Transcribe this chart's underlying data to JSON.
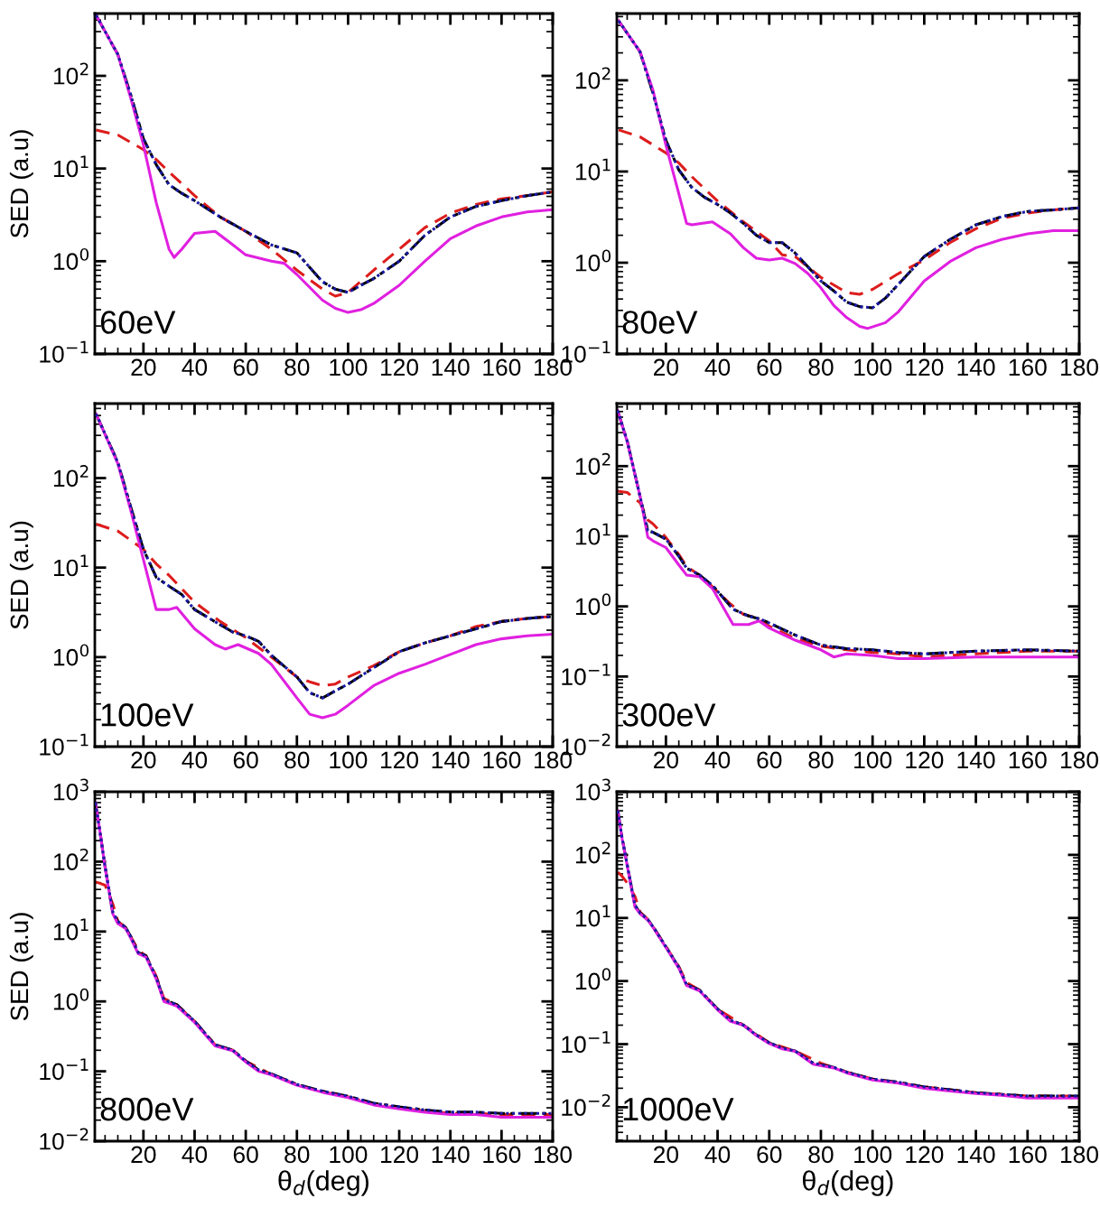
{
  "chart_data": [
    {
      "type": "line",
      "ylabel": "SED (a.u)",
      "annotations": [
        "60eV"
      ],
      "log": "y",
      "xlim": [
        1,
        180
      ],
      "ylim": [
        0.1,
        470
      ],
      "xticks": [
        20,
        40,
        60,
        80,
        100,
        120,
        140,
        160,
        180
      ],
      "yticks": [
        {
          "value": 0.1,
          "label": "10$^{−1}$"
        },
        {
          "value": 1,
          "label": "10$^{0}$"
        },
        {
          "value": 10,
          "label": "10$^{1}$"
        },
        {
          "value": 100,
          "label": "10$^{2}$"
        }
      ],
      "series": [
        {
          "color": "#dd1c1c",
          "line_style": "dashed",
          "x": [
            1.5,
            10,
            20,
            25,
            30,
            40,
            50,
            60,
            70,
            80,
            90,
            95,
            100,
            110,
            120,
            130,
            140,
            150,
            160,
            170,
            180
          ],
          "values": [
            26,
            23,
            16,
            12.5,
            9.2,
            5.1,
            3.0,
            2.1,
            1.35,
            0.8,
            0.5,
            0.42,
            0.46,
            0.8,
            1.35,
            2.3,
            3.3,
            4.1,
            4.7,
            5.1,
            5.6
          ]
        },
        {
          "color": "#1a1aa8",
          "line_style": "dotted",
          "x": [
            1.5,
            10,
            15,
            20,
            25,
            30,
            35,
            40,
            50,
            60,
            70,
            80,
            90,
            95,
            100,
            105,
            110,
            120,
            130,
            140,
            150,
            160,
            170,
            180
          ],
          "values": [
            450,
            170,
            63,
            21,
            11,
            6.7,
            5.4,
            4.5,
            3.0,
            2.1,
            1.5,
            1.23,
            0.6,
            0.5,
            0.46,
            0.55,
            0.65,
            1.0,
            1.9,
            3.0,
            3.9,
            4.5,
            5.1,
            5.6
          ]
        },
        {
          "color": "#000000",
          "line_style": "dashdot",
          "x": [
            1.5,
            10,
            15,
            20,
            25,
            30,
            35,
            40,
            50,
            60,
            70,
            80,
            90,
            95,
            100,
            105,
            110,
            120,
            130,
            140,
            150,
            160,
            170,
            180
          ],
          "values": [
            450,
            170,
            63,
            21,
            11,
            6.7,
            5.4,
            4.5,
            3.0,
            2.1,
            1.5,
            1.23,
            0.6,
            0.5,
            0.46,
            0.55,
            0.65,
            1.0,
            1.9,
            3.0,
            3.9,
            4.5,
            5.1,
            5.6
          ]
        },
        {
          "color": "#e020e0",
          "line_style": "solid",
          "x": [
            1.5,
            10,
            15,
            20,
            25,
            30,
            32,
            35,
            40,
            48,
            55,
            60,
            70,
            75,
            80,
            90,
            95,
            100,
            105,
            110,
            120,
            130,
            140,
            150,
            160,
            170,
            180
          ],
          "values": [
            450,
            170,
            58,
            18,
            4.3,
            1.35,
            1.1,
            1.35,
            2.0,
            2.1,
            1.5,
            1.17,
            1.0,
            0.95,
            0.72,
            0.38,
            0.31,
            0.28,
            0.3,
            0.35,
            0.55,
            1.0,
            1.75,
            2.4,
            3.0,
            3.4,
            3.6
          ]
        }
      ]
    },
    {
      "type": "line",
      "annotations": [
        "80eV"
      ],
      "log": "y",
      "xlim": [
        1,
        180
      ],
      "ylim": [
        0.1,
        540
      ],
      "xticks": [
        20,
        40,
        60,
        80,
        100,
        120,
        140,
        160,
        180
      ],
      "yticks": [
        {
          "value": 0.1,
          "label": "10$^{−1}$"
        },
        {
          "value": 1,
          "label": "10$^{0}$"
        },
        {
          "value": 10,
          "label": "10$^{1}$"
        },
        {
          "value": 100,
          "label": "10$^{2}$"
        }
      ],
      "series": [
        {
          "color": "#dd1c1c",
          "line_style": "dashed",
          "x": [
            1.7,
            10,
            20,
            25,
            30,
            40,
            50,
            60,
            65,
            70,
            80,
            90,
            95,
            100,
            110,
            120,
            130,
            140,
            150,
            160,
            170,
            180
          ],
          "values": [
            28.6,
            24,
            16,
            12.4,
            8.8,
            4.75,
            2.8,
            1.74,
            1.22,
            1.17,
            0.69,
            0.47,
            0.45,
            0.51,
            0.76,
            1.07,
            1.66,
            2.36,
            3.06,
            3.5,
            3.8,
            4.0
          ]
        },
        {
          "color": "#1a1aa8",
          "line_style": "dotted",
          "x": [
            1.7,
            10,
            15,
            20,
            25,
            30,
            35,
            40,
            45,
            50,
            55,
            60,
            65,
            70,
            75,
            80,
            85,
            90,
            95,
            100,
            105,
            110,
            120,
            130,
            140,
            150,
            160,
            170,
            180
          ],
          "values": [
            450,
            205,
            72,
            22,
            10.4,
            6.7,
            5.2,
            4.35,
            3.5,
            2.7,
            2.0,
            1.66,
            1.66,
            1.28,
            0.9,
            0.63,
            0.49,
            0.37,
            0.33,
            0.32,
            0.41,
            0.58,
            1.17,
            1.8,
            2.6,
            3.2,
            3.65,
            3.8,
            4.0
          ]
        },
        {
          "color": "#000000",
          "line_style": "dashdot",
          "x": [
            1.7,
            10,
            15,
            20,
            25,
            30,
            35,
            40,
            45,
            50,
            55,
            60,
            65,
            70,
            75,
            80,
            85,
            90,
            95,
            100,
            105,
            110,
            120,
            130,
            140,
            150,
            160,
            170,
            180
          ],
          "values": [
            450,
            205,
            72,
            22,
            10.4,
            6.7,
            5.2,
            4.35,
            3.5,
            2.7,
            2.0,
            1.66,
            1.66,
            1.28,
            0.9,
            0.63,
            0.49,
            0.37,
            0.33,
            0.32,
            0.41,
            0.58,
            1.17,
            1.8,
            2.6,
            3.2,
            3.65,
            3.8,
            4.0
          ]
        },
        {
          "color": "#e020e0",
          "line_style": "solid",
          "x": [
            1.7,
            10,
            15,
            20,
            25,
            28,
            30,
            38,
            45,
            50,
            55,
            60,
            65,
            70,
            75,
            80,
            85,
            90,
            95,
            98,
            105,
            110,
            120,
            130,
            140,
            150,
            160,
            170,
            180
          ],
          "values": [
            450,
            205,
            78,
            19.4,
            5.7,
            2.7,
            2.6,
            2.8,
            2.07,
            1.46,
            1.12,
            1.07,
            1.12,
            0.98,
            0.76,
            0.53,
            0.34,
            0.25,
            0.2,
            0.19,
            0.22,
            0.29,
            0.63,
            1.03,
            1.46,
            1.8,
            2.07,
            2.25,
            2.25
          ]
        }
      ]
    },
    {
      "type": "line",
      "ylabel": "SED (a.u)",
      "annotations": [
        "100eV"
      ],
      "log": "y",
      "xlim": [
        1,
        180
      ],
      "ylim": [
        0.1,
        680
      ],
      "xticks": [
        20,
        40,
        60,
        80,
        100,
        120,
        140,
        160,
        180
      ],
      "yticks": [
        {
          "value": 0.1,
          "label": "10$^{−1}$"
        },
        {
          "value": 1,
          "label": "10$^{0}$"
        },
        {
          "value": 10,
          "label": "10$^{1}$"
        },
        {
          "value": 100,
          "label": "10$^{2}$"
        }
      ],
      "series": [
        {
          "color": "#dd1c1c",
          "line_style": "dashed",
          "x": [
            1.5,
            10,
            20,
            25,
            30,
            40,
            50,
            60,
            70,
            80,
            85,
            90,
            95,
            100,
            110,
            120,
            130,
            140,
            150,
            160,
            170,
            180
          ],
          "values": [
            30.6,
            25.6,
            16,
            11,
            8.2,
            4.1,
            2.5,
            1.65,
            1.0,
            0.6,
            0.53,
            0.48,
            0.5,
            0.6,
            0.8,
            1.15,
            1.44,
            1.73,
            2.2,
            2.5,
            2.7,
            2.85
          ]
        },
        {
          "color": "#1a1aa8",
          "line_style": "dotted",
          "x": [
            1.5,
            10,
            15,
            20,
            25,
            30,
            35,
            40,
            50,
            55,
            60,
            65,
            70,
            80,
            85,
            90,
            95,
            100,
            110,
            120,
            130,
            140,
            150,
            160,
            170,
            180
          ],
          "values": [
            520,
            150,
            48,
            16,
            7.8,
            6.2,
            5.0,
            3.4,
            2.3,
            1.9,
            1.73,
            1.5,
            1.05,
            0.6,
            0.4,
            0.35,
            0.42,
            0.5,
            0.76,
            1.15,
            1.44,
            1.73,
            2.07,
            2.5,
            2.7,
            2.85
          ]
        },
        {
          "color": "#000000",
          "line_style": "dashdot",
          "x": [
            1.5,
            10,
            15,
            20,
            25,
            30,
            35,
            40,
            50,
            55,
            60,
            65,
            70,
            80,
            85,
            90,
            95,
            100,
            110,
            120,
            130,
            140,
            150,
            160,
            170,
            180
          ],
          "values": [
            520,
            150,
            48,
            16,
            7.8,
            6.2,
            5.0,
            3.4,
            2.3,
            1.9,
            1.73,
            1.5,
            1.05,
            0.6,
            0.4,
            0.35,
            0.42,
            0.5,
            0.76,
            1.15,
            1.44,
            1.73,
            2.07,
            2.5,
            2.7,
            2.85
          ]
        },
        {
          "color": "#e020e0",
          "line_style": "solid",
          "x": [
            1.5,
            10,
            15,
            20,
            25,
            30,
            33,
            40,
            48,
            52,
            57,
            65,
            70,
            80,
            85,
            90,
            95,
            100,
            110,
            120,
            130,
            140,
            150,
            160,
            170,
            180
          ],
          "values": [
            520,
            145,
            44,
            12.3,
            3.4,
            3.4,
            3.6,
            2.07,
            1.38,
            1.23,
            1.38,
            1.1,
            0.83,
            0.35,
            0.23,
            0.21,
            0.23,
            0.29,
            0.48,
            0.66,
            0.83,
            1.07,
            1.38,
            1.6,
            1.73,
            1.8
          ]
        }
      ]
    },
    {
      "type": "line",
      "annotations": [
        "300eV"
      ],
      "log": "y",
      "xlim": [
        1,
        180
      ],
      "ylim": [
        0.01,
        780
      ],
      "xticks": [
        20,
        40,
        60,
        80,
        100,
        120,
        140,
        160,
        180
      ],
      "yticks": [
        {
          "value": 0.01,
          "label": "10$^{−2}$"
        },
        {
          "value": 0.1,
          "label": "10$^{−1}$"
        },
        {
          "value": 1,
          "label": "10$^{0}$"
        },
        {
          "value": 10,
          "label": "10$^{1}$"
        },
        {
          "value": 100,
          "label": "10$^{2}$"
        }
      ],
      "series": [
        {
          "color": "#dd1c1c",
          "line_style": "dashed",
          "x": [
            1.3,
            5,
            10,
            13,
            15,
            20,
            25,
            28,
            33,
            38,
            45,
            50,
            55,
            60,
            70,
            80,
            90,
            100,
            110,
            120,
            140,
            160,
            180
          ],
          "values": [
            44,
            42,
            30,
            17,
            15,
            9.6,
            5.5,
            3.7,
            2.8,
            1.9,
            1.08,
            0.77,
            0.69,
            0.52,
            0.35,
            0.27,
            0.24,
            0.22,
            0.21,
            0.19,
            0.21,
            0.23,
            0.23
          ]
        },
        {
          "color": "#1a1aa8",
          "line_style": "dotted",
          "x": [
            1.3,
            5,
            10,
            13,
            15,
            20,
            25,
            28,
            33,
            38,
            42,
            46,
            52,
            57,
            60,
            70,
            80,
            90,
            100,
            110,
            120,
            140,
            160,
            180
          ],
          "values": [
            620,
            230,
            37,
            12,
            11.4,
            9.1,
            5.2,
            3.5,
            2.8,
            2.0,
            1.35,
            0.91,
            0.73,
            0.65,
            0.58,
            0.39,
            0.28,
            0.25,
            0.24,
            0.22,
            0.21,
            0.23,
            0.24,
            0.23
          ]
        },
        {
          "color": "#000000",
          "line_style": "dashdot",
          "x": [
            1.3,
            5,
            10,
            13,
            15,
            20,
            25,
            28,
            33,
            38,
            42,
            46,
            52,
            57,
            60,
            70,
            80,
            90,
            100,
            110,
            120,
            140,
            160,
            180
          ],
          "values": [
            620,
            230,
            37,
            12,
            11.4,
            9.1,
            5.2,
            3.5,
            2.8,
            2.0,
            1.35,
            0.91,
            0.73,
            0.65,
            0.58,
            0.39,
            0.28,
            0.25,
            0.24,
            0.22,
            0.21,
            0.23,
            0.24,
            0.23
          ]
        },
        {
          "color": "#e020e0",
          "line_style": "solid",
          "x": [
            1.3,
            5,
            10,
            13,
            15,
            20,
            25,
            28,
            33,
            38,
            42,
            46,
            52,
            56,
            60,
            70,
            80,
            85,
            90,
            100,
            110,
            120,
            140,
            160,
            180
          ],
          "values": [
            620,
            225,
            37,
            9.7,
            8.6,
            6.9,
            3.9,
            2.8,
            2.65,
            1.8,
            1.0,
            0.55,
            0.55,
            0.62,
            0.49,
            0.33,
            0.24,
            0.19,
            0.21,
            0.2,
            0.18,
            0.18,
            0.19,
            0.19,
            0.19
          ]
        }
      ]
    },
    {
      "type": "line",
      "xlabel": "θ$_{d}$(deg)",
      "ylabel": "SED (a.u)",
      "annotations": [
        "800eV"
      ],
      "log": "y",
      "xlim": [
        1,
        180
      ],
      "ylim": [
        0.01,
        1000
      ],
      "xticks": [
        20,
        40,
        60,
        80,
        100,
        120,
        140,
        160,
        180
      ],
      "yticks": [
        {
          "value": 0.01,
          "label": "10$^{−2}$"
        },
        {
          "value": 0.1,
          "label": "10$^{−1}$"
        },
        {
          "value": 1,
          "label": "10$^{0}$"
        },
        {
          "value": 10,
          "label": "10$^{1}$"
        },
        {
          "value": 100,
          "label": "10$^{2}$"
        },
        {
          "value": 1000,
          "label": "10$^{3}$"
        }
      ],
      "series": [
        {
          "color": "#dd1c1c",
          "line_style": "dashed",
          "x": [
            1.2,
            3,
            5,
            8,
            10,
            13,
            15,
            18,
            21,
            25,
            28,
            33,
            40,
            48,
            55,
            60,
            70,
            80,
            90,
            100,
            110,
            120,
            130,
            140,
            150,
            160,
            170,
            180
          ],
          "values": [
            51,
            49,
            46,
            25,
            14,
            11.5,
            8.5,
            5.4,
            4.5,
            2.3,
            1.1,
            0.9,
            0.52,
            0.24,
            0.2,
            0.14,
            0.09,
            0.064,
            0.051,
            0.043,
            0.034,
            0.03,
            0.027,
            0.025,
            0.025,
            0.024,
            0.024,
            0.024
          ]
        },
        {
          "color": "#1a1aa8",
          "line_style": "dotted",
          "x": [
            1.2,
            3,
            5,
            8,
            10,
            13,
            15,
            18,
            21,
            25,
            28,
            33,
            40,
            48,
            55,
            60,
            65,
            70,
            80,
            90,
            100,
            110,
            120,
            130,
            140,
            150,
            160,
            170,
            180
          ],
          "values": [
            700,
            270,
            85,
            19,
            14,
            11.5,
            8.5,
            5,
            4.5,
            2.2,
            1.05,
            0.9,
            0.52,
            0.24,
            0.2,
            0.14,
            0.105,
            0.092,
            0.065,
            0.052,
            0.044,
            0.035,
            0.031,
            0.028,
            0.026,
            0.026,
            0.025,
            0.025,
            0.025
          ]
        },
        {
          "color": "#000000",
          "line_style": "dashdot",
          "x": [
            1.2,
            3,
            5,
            8,
            10,
            13,
            15,
            18,
            21,
            25,
            28,
            33,
            40,
            48,
            55,
            60,
            65,
            70,
            80,
            90,
            100,
            110,
            120,
            130,
            140,
            150,
            160,
            170,
            180
          ],
          "values": [
            700,
            270,
            85,
            19,
            14,
            11.5,
            8.5,
            5,
            4.5,
            2.2,
            1.05,
            0.9,
            0.52,
            0.24,
            0.2,
            0.14,
            0.105,
            0.092,
            0.065,
            0.052,
            0.044,
            0.035,
            0.031,
            0.028,
            0.026,
            0.026,
            0.025,
            0.025,
            0.025
          ]
        },
        {
          "color": "#e020e0",
          "line_style": "solid",
          "x": [
            1.2,
            3,
            5,
            8,
            10,
            13,
            15,
            18,
            21,
            25,
            28,
            33,
            40,
            48,
            55,
            60,
            65,
            70,
            80,
            90,
            100,
            110,
            120,
            130,
            140,
            150,
            160,
            170,
            180
          ],
          "values": [
            700,
            270,
            83,
            18,
            13,
            11,
            8.1,
            4.8,
            4.3,
            2.1,
            1.0,
            0.86,
            0.5,
            0.23,
            0.196,
            0.136,
            0.1,
            0.089,
            0.063,
            0.05,
            0.042,
            0.033,
            0.029,
            0.026,
            0.024,
            0.024,
            0.022,
            0.022,
            0.022
          ]
        }
      ]
    },
    {
      "type": "line",
      "xlabel": "θ$_{d}$(deg)",
      "annotations": [
        "1000eV"
      ],
      "log": "y",
      "xlim": [
        1,
        180
      ],
      "ylim": [
        0.0029,
        1000
      ],
      "xticks": [
        20,
        40,
        60,
        80,
        100,
        120,
        140,
        160,
        180
      ],
      "yticks": [
        {
          "value": 0.01,
          "label": "10$^{−2}$"
        },
        {
          "value": 0.1,
          "label": "10$^{−1}$"
        },
        {
          "value": 1,
          "label": "10$^{0}$"
        },
        {
          "value": 10,
          "label": "10$^{1}$"
        },
        {
          "value": 100,
          "label": "10$^{2}$"
        },
        {
          "value": 1000,
          "label": "10$^{3}$"
        }
      ],
      "series": [
        {
          "color": "#dd1c1c",
          "line_style": "dashed",
          "x": [
            1.4,
            3,
            5,
            8,
            10,
            13,
            15,
            20,
            25,
            28,
            33,
            40,
            50,
            60,
            70,
            80,
            90,
            100,
            120,
            140,
            160,
            180
          ],
          "values": [
            53,
            46,
            36,
            22,
            12.5,
            9.5,
            7.3,
            3.5,
            1.7,
            0.95,
            0.72,
            0.36,
            0.2,
            0.105,
            0.078,
            0.05,
            0.036,
            0.028,
            0.021,
            0.017,
            0.015,
            0.015
          ]
        },
        {
          "color": "#1a1aa8",
          "line_style": "dotted",
          "x": [
            1.4,
            3,
            5,
            8,
            10,
            13,
            15,
            20,
            25,
            28,
            33,
            40,
            45,
            50,
            55,
            60,
            65,
            70,
            77,
            85,
            90,
            100,
            110,
            120,
            130,
            140,
            150,
            160,
            170,
            180
          ],
          "values": [
            500,
            190,
            70,
            16,
            12,
            9.5,
            7.3,
            3.5,
            1.65,
            0.88,
            0.72,
            0.36,
            0.24,
            0.2,
            0.14,
            0.105,
            0.087,
            0.078,
            0.05,
            0.043,
            0.036,
            0.028,
            0.025,
            0.021,
            0.019,
            0.017,
            0.016,
            0.015,
            0.015,
            0.015
          ]
        },
        {
          "color": "#000000",
          "line_style": "dashdot",
          "x": [
            1.4,
            3,
            5,
            8,
            10,
            13,
            15,
            20,
            25,
            28,
            33,
            40,
            45,
            50,
            55,
            60,
            65,
            70,
            77,
            85,
            90,
            100,
            110,
            120,
            130,
            140,
            150,
            160,
            170,
            180
          ],
          "values": [
            500,
            190,
            70,
            16,
            12,
            9.5,
            7.3,
            3.5,
            1.65,
            0.88,
            0.72,
            0.36,
            0.24,
            0.2,
            0.14,
            0.105,
            0.087,
            0.078,
            0.05,
            0.043,
            0.036,
            0.028,
            0.025,
            0.021,
            0.019,
            0.017,
            0.016,
            0.015,
            0.015,
            0.015
          ]
        },
        {
          "color": "#e020e0",
          "line_style": "solid",
          "x": [
            1.4,
            3,
            5,
            8,
            10,
            13,
            15,
            20,
            25,
            28,
            33,
            40,
            45,
            50,
            55,
            60,
            65,
            70,
            77,
            85,
            90,
            100,
            110,
            120,
            130,
            140,
            150,
            160,
            170,
            180
          ],
          "values": [
            500,
            185,
            68,
            15,
            11.7,
            9.2,
            7.1,
            3.4,
            1.6,
            0.85,
            0.7,
            0.35,
            0.23,
            0.2,
            0.137,
            0.102,
            0.084,
            0.077,
            0.048,
            0.042,
            0.035,
            0.027,
            0.024,
            0.02,
            0.018,
            0.0165,
            0.0155,
            0.014,
            0.014,
            0.014
          ]
        }
      ]
    }
  ]
}
